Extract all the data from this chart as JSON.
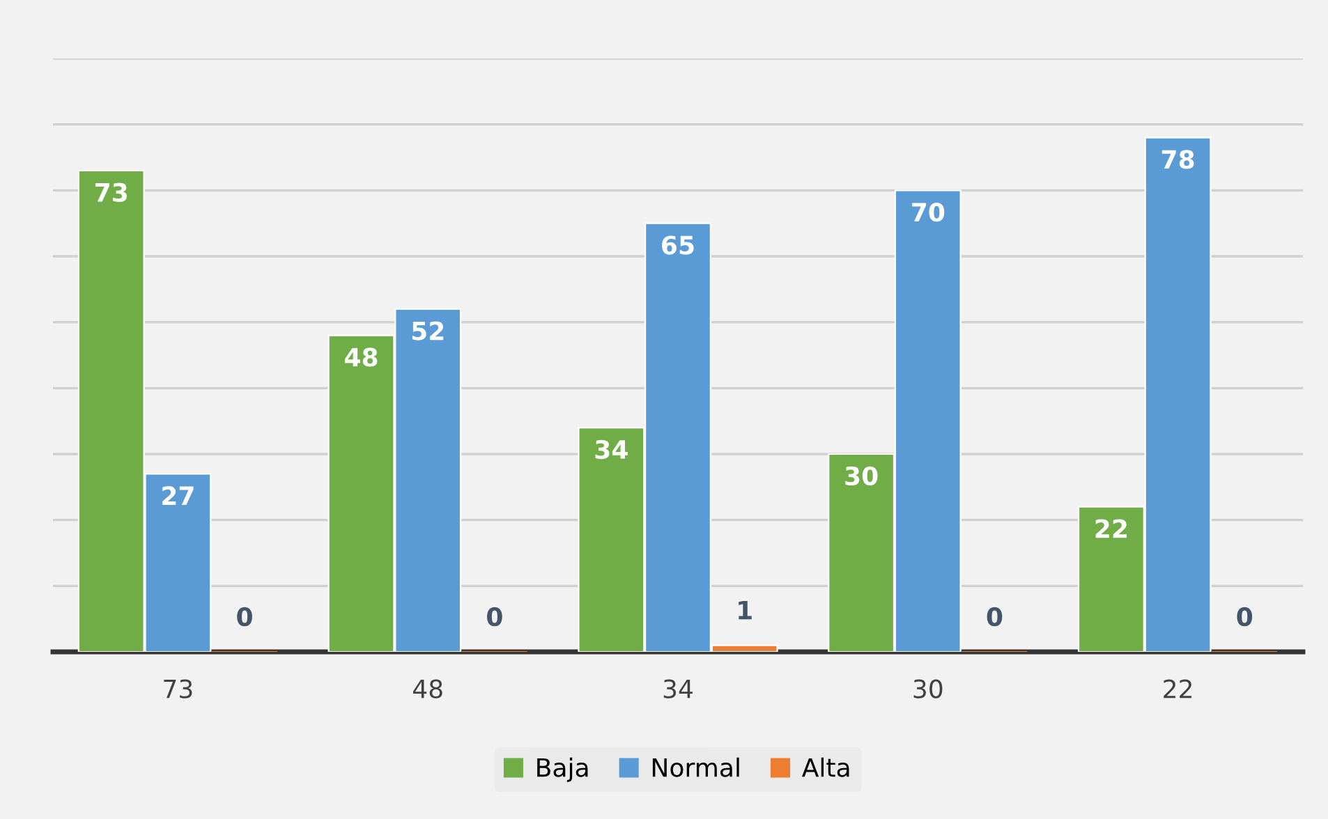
{
  "chart_data": {
    "type": "bar",
    "categories": [
      "73",
      "48",
      "34",
      "30",
      "22"
    ],
    "series": [
      {
        "name": "Baja",
        "color": "#70ad47",
        "values": [
          73,
          48,
          34,
          30,
          22
        ]
      },
      {
        "name": "Normal",
        "color": "#5b9bd5",
        "values": [
          27,
          52,
          65,
          70,
          78
        ]
      },
      {
        "name": "Alta",
        "color": "#ed7d31",
        "values": [
          0,
          0,
          1,
          0,
          0
        ]
      }
    ],
    "ylim": [
      0,
      90
    ],
    "yticks": [
      {
        "value": 0,
        "label": null
      },
      {
        "value": 10,
        "label": null
      },
      {
        "value": 20,
        "label": null
      },
      {
        "value": 30,
        "label": null
      },
      {
        "value": 40,
        "label": null
      },
      {
        "value": 50,
        "label": null
      },
      {
        "value": 60,
        "label": null
      },
      {
        "value": 70,
        "label": null
      },
      {
        "value": 80,
        "label": null
      },
      {
        "value": 90,
        "label": null
      }
    ],
    "tick_labels": "x",
    "grid": "y",
    "legend": "bottom",
    "data_labels": true
  }
}
